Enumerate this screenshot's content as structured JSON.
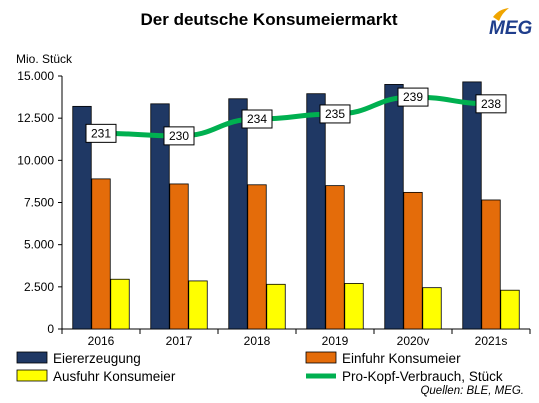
{
  "chart_data": {
    "type": "bar",
    "title": "Der deutsche Konsumeiermarkt",
    "ylabel": "Mio. Stück",
    "xlabel": "",
    "ylim": [
      0,
      15000
    ],
    "yticks": [
      0,
      2500,
      5000,
      7500,
      10000,
      12500,
      15000
    ],
    "ytick_labels": [
      "0",
      "2.500",
      "5.000",
      "7.500",
      "10.000",
      "12.500",
      "15.000"
    ],
    "categories": [
      "2016",
      "2017",
      "2018",
      "2019",
      "2020v",
      "2021s"
    ],
    "series": [
      {
        "name": "Eiererzeugung",
        "type": "bar",
        "color": "#1F3864",
        "values": [
          13200,
          13350,
          13650,
          13950,
          14500,
          14650
        ]
      },
      {
        "name": "Einfuhr Konsumeier",
        "type": "bar",
        "color": "#E46C0A",
        "values": [
          8900,
          8600,
          8550,
          8500,
          8100,
          7650
        ]
      },
      {
        "name": "Ausfuhr Konsumeier",
        "type": "bar",
        "color": "#FFFF00",
        "values": [
          2950,
          2850,
          2650,
          2700,
          2450,
          2300
        ]
      },
      {
        "name": "Pro-Kopf-Verbrauch, Stück",
        "type": "line",
        "color": "#00B050",
        "values": [
          231,
          230,
          234,
          235,
          239,
          238
        ],
        "display_y": [
          11600,
          11450,
          12450,
          12750,
          13750,
          13350
        ]
      }
    ],
    "grid": false,
    "legend": "bottom"
  },
  "source": "Quellen: BLE, MEG.",
  "logo": {
    "text": "MEG",
    "color": "#1F3E8C",
    "accent": "#F0A500"
  }
}
